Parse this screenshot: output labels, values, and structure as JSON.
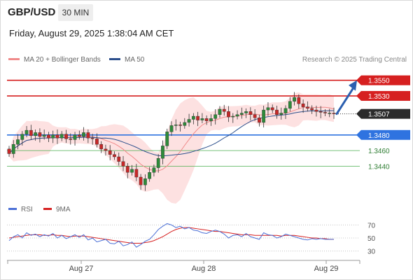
{
  "header": {
    "symbol": "GBP/USD",
    "timeframe": "30 MIN",
    "datetime": "Friday, August 29, 2025 1:38:04 AM CET",
    "credit": "Research © 2025 Trading Central"
  },
  "chart_data": [
    {
      "type": "candlestick",
      "legend": [
        {
          "label": "MA 20 + Bollinger Bands",
          "color": "#f08a8a"
        },
        {
          "label": "MA 50",
          "color": "#2c4f8c"
        }
      ],
      "y_range": [
        1.34,
        1.3565
      ],
      "x_ticks": [
        "Aug 27",
        "Aug 28",
        "Aug 29"
      ],
      "current_price": {
        "value": 1.3507,
        "label": "1.3507"
      },
      "levels": [
        {
          "value": 1.355,
          "label": "1.3550",
          "kind": "resistance",
          "color": "#d62020"
        },
        {
          "value": 1.353,
          "label": "1.3530",
          "kind": "resistance",
          "color": "#d62020"
        },
        {
          "value": 1.348,
          "label": "1.3480",
          "kind": "pivot",
          "color": "#2f73e0"
        },
        {
          "value": 1.346,
          "label": "1.3460",
          "kind": "support",
          "color": "#4caf50"
        },
        {
          "value": 1.344,
          "label": "1.3440",
          "kind": "support",
          "color": "#4caf50"
        }
      ],
      "close_path": [
        1.3456,
        1.3468,
        1.3474,
        1.3481,
        1.3486,
        1.3479,
        1.3483,
        1.3478,
        1.348,
        1.3476,
        1.348,
        1.3476,
        1.3481,
        1.3475,
        1.3474,
        1.348,
        1.3478,
        1.3483,
        1.3476,
        1.3475,
        1.3468,
        1.3462,
        1.346,
        1.3455,
        1.3452,
        1.3446,
        1.344,
        1.3432,
        1.3436,
        1.3426,
        1.3416,
        1.3424,
        1.3432,
        1.3438,
        1.345,
        1.3466,
        1.3484,
        1.3492,
        1.3493,
        1.3492,
        1.3496,
        1.35,
        1.3504,
        1.3499,
        1.3501,
        1.3498,
        1.3501,
        1.3506,
        1.3513,
        1.351,
        1.3503,
        1.3504,
        1.3506,
        1.3508,
        1.351,
        1.3506,
        1.3502,
        1.3496,
        1.3512,
        1.3515,
        1.3512,
        1.3506,
        1.3508,
        1.3514,
        1.3523,
        1.3528,
        1.352,
        1.3516,
        1.3514,
        1.3512,
        1.351,
        1.3509,
        1.3508,
        1.3508,
        1.3507
      ],
      "forecast_target": 1.355,
      "indicator": {
        "legend": [
          {
            "label": "RSI",
            "color": "#4a6fd6"
          },
          {
            "label": "9MA",
            "color": "#d62020"
          }
        ],
        "levels": [
          70,
          50,
          30
        ],
        "y_range": [
          20,
          80
        ],
        "rsi": [
          46,
          52,
          55,
          50,
          58,
          54,
          56,
          52,
          55,
          53,
          57,
          50,
          54,
          49,
          52,
          55,
          51,
          55,
          47,
          50,
          44,
          46,
          48,
          42,
          41,
          45,
          38,
          40,
          44,
          36,
          40,
          45,
          48,
          55,
          63,
          68,
          72,
          70,
          66,
          68,
          64,
          66,
          62,
          61,
          58,
          57,
          60,
          62,
          60,
          56,
          50,
          54,
          55,
          52,
          57,
          52,
          50,
          48,
          58,
          55,
          54,
          50,
          52,
          56,
          54,
          52,
          50,
          48,
          47,
          49,
          48,
          49,
          48,
          48,
          48
        ],
        "ma9": [
          50,
          51,
          52,
          53,
          54,
          55,
          55,
          55,
          54,
          54,
          55,
          54,
          54,
          53,
          52,
          53,
          53,
          53,
          52,
          51,
          50,
          49,
          48,
          47,
          46,
          45,
          44,
          43,
          42,
          42,
          42,
          43,
          44,
          46,
          49,
          52,
          56,
          60,
          63,
          65,
          66,
          66,
          65,
          64,
          63,
          62,
          61,
          60,
          60,
          59,
          58,
          57,
          56,
          55,
          55,
          55,
          54,
          54,
          54,
          54,
          54,
          54,
          53,
          54,
          54,
          54,
          53,
          52,
          51,
          50,
          50,
          49,
          49,
          48,
          48
        ]
      }
    }
  ]
}
